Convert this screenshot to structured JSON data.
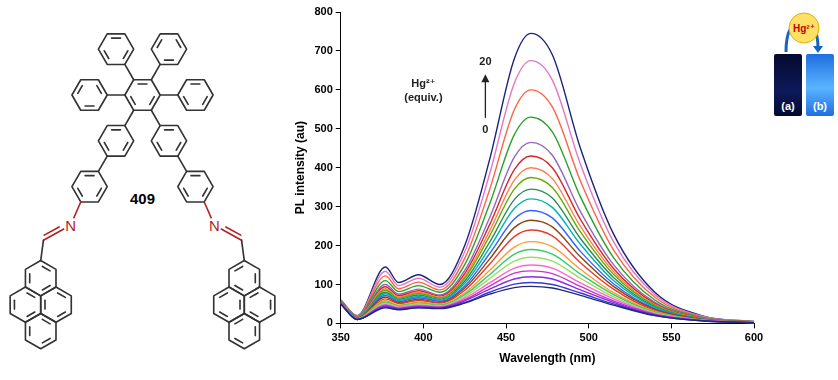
{
  "chart_data": {
    "type": "line",
    "x": [
      350,
      360,
      377,
      385,
      397,
      410,
      425,
      440,
      455,
      465,
      478,
      495,
      515,
      540,
      570,
      600
    ],
    "series": [
      {
        "color": "#1f2a7a",
        "values": [
          50,
          10,
          40,
          35,
          40,
          38,
          52,
          75,
          92,
          95,
          91,
          72,
          47,
          20,
          6,
          2
        ]
      },
      {
        "color": "#3a3ad0",
        "values": [
          50,
          10,
          42,
          36,
          41,
          39,
          54,
          80,
          101,
          105,
          100,
          78,
          50,
          21,
          6,
          2
        ]
      },
      {
        "color": "#8a2be2",
        "values": [
          50,
          10,
          44,
          38,
          43,
          40,
          58,
          88,
          114,
          120,
          114,
          86,
          54,
          22,
          7,
          2
        ]
      },
      {
        "color": "#cc33cc",
        "values": [
          51,
          11,
          47,
          39,
          45,
          42,
          61,
          96,
          129,
          135,
          128,
          95,
          58,
          24,
          7,
          2
        ]
      },
      {
        "color": "#ff66cc",
        "values": [
          51,
          11,
          49,
          41,
          47,
          43,
          65,
          104,
          142,
          150,
          142,
          104,
          63,
          25,
          7,
          2
        ]
      },
      {
        "color": "#99dd66",
        "values": [
          51,
          11,
          52,
          43,
          50,
          45,
          69,
          115,
          160,
          170,
          160,
          116,
          68,
          27,
          7,
          2
        ]
      },
      {
        "color": "#33cc66",
        "values": [
          52,
          12,
          55,
          45,
          52,
          47,
          74,
          125,
          178,
          190,
          178,
          127,
          74,
          29,
          8,
          2
        ]
      },
      {
        "color": "#ff9933",
        "values": [
          52,
          12,
          59,
          47,
          55,
          49,
          78,
          136,
          196,
          210,
          197,
          139,
          79,
          31,
          8,
          3
        ]
      },
      {
        "color": "#e63b2e",
        "values": [
          52,
          12,
          63,
          51,
          59,
          52,
          85,
          152,
          223,
          240,
          225,
          156,
          88,
          33,
          9,
          3
        ]
      },
      {
        "color": "#8b4513",
        "values": [
          53,
          13,
          68,
          53,
          62,
          54,
          91,
          165,
          246,
          265,
          248,
          171,
          95,
          36,
          9,
          3
        ]
      },
      {
        "color": "#3366ff",
        "values": [
          53,
          13,
          72,
          56,
          66,
          57,
          96,
          179,
          268,
          290,
          271,
          185,
          102,
          38,
          10,
          3
        ]
      },
      {
        "color": "#00b3b3",
        "values": [
          54,
          14,
          76,
          59,
          69,
          60,
          103,
          194,
          295,
          320,
          298,
          203,
          110,
          41,
          10,
          3
        ]
      },
      {
        "color": "#2e8b57",
        "values": [
          54,
          14,
          80,
          62,
          73,
          62,
          109,
          208,
          318,
          345,
          322,
          218,
          118,
          43,
          11,
          3
        ]
      },
      {
        "color": "#66aa00",
        "values": [
          54,
          14,
          85,
          65,
          77,
          65,
          116,
          224,
          345,
          375,
          349,
          235,
          126,
          46,
          11,
          3
        ]
      },
      {
        "color": "#ff7f50",
        "values": [
          55,
          15,
          89,
          68,
          80,
          67,
          121,
          237,
          368,
          400,
          372,
          249,
          133,
          48,
          12,
          3
        ]
      },
      {
        "color": "#d62728",
        "values": [
          55,
          15,
          94,
          71,
          84,
          70,
          128,
          253,
          395,
          430,
          400,
          267,
          141,
          51,
          12,
          4
        ]
      },
      {
        "color": "#9467bd",
        "values": [
          56,
          16,
          100,
          75,
          88,
          73,
          136,
          271,
          427,
          465,
          432,
          287,
          151,
          54,
          13,
          4
        ]
      },
      {
        "color": "#2ca02c",
        "values": [
          57,
          17,
          110,
          82,
          97,
          80,
          151,
          306,
          485,
          530,
          492,
          325,
          169,
          60,
          14,
          4
        ]
      },
      {
        "color": "#ff6347",
        "values": [
          58,
          18,
          122,
          89,
          106,
          86,
          167,
          343,
          549,
          600,
          556,
          366,
          189,
          67,
          15,
          4
        ]
      },
      {
        "color": "#e377c2",
        "values": [
          59,
          19,
          134,
          97,
          116,
          93,
          184,
          383,
          617,
          675,
          625,
          409,
          210,
          74,
          17,
          5
        ]
      },
      {
        "color": "#1a237e",
        "values": [
          60,
          20,
          145,
          105,
          125,
          100,
          200,
          420,
          680,
          745,
          690,
          450,
          230,
          80,
          18,
          5
        ]
      }
    ],
    "xlim": [
      350,
      600
    ],
    "xticks": [
      350,
      400,
      450,
      500,
      550,
      600
    ],
    "ylim": [
      0,
      800
    ],
    "yticks": [
      0,
      100,
      200,
      300,
      400,
      500,
      600,
      700,
      800
    ],
    "x_label": "Wavelength (nm)",
    "y_label": "PL intensity (au)",
    "grid": false,
    "annotations": [
      {
        "label": [
          "Hg²⁺",
          "(equiv.)"
        ],
        "from": 0,
        "to": 20
      }
    ]
  },
  "structure": {
    "label": "409",
    "atoms": [
      "N",
      "N"
    ]
  },
  "inset": {
    "badge": "Hg²⁺",
    "panels": [
      "(a)",
      "(b)"
    ]
  }
}
